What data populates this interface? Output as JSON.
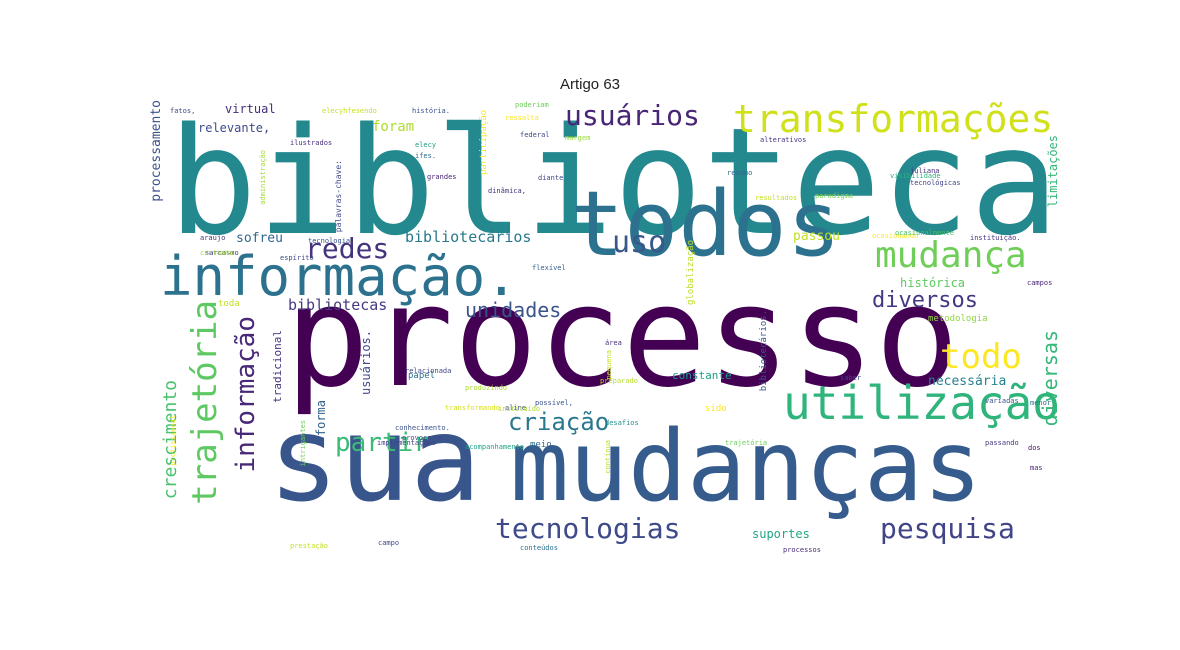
{
  "title": "Artigo 63",
  "words": [
    {
      "text": "biblioteca",
      "color": "#23898e"
    },
    {
      "text": "processo",
      "color": "#440154"
    },
    {
      "text": "sua",
      "color": "#39568c"
    },
    {
      "text": "mudanças",
      "color": "#365c8d"
    },
    {
      "text": "todos",
      "color": "#2c728e"
    },
    {
      "text": "informação.",
      "color": "#2c728e"
    },
    {
      "text": "utilização",
      "color": "#2fb47c"
    },
    {
      "text": "transformações",
      "color": "#d0e11c"
    },
    {
      "text": "mudança",
      "color": "#6ece58"
    },
    {
      "text": "usuários",
      "color": "#482576"
    },
    {
      "text": "uso",
      "color": "#38588c"
    },
    {
      "text": "redes",
      "color": "#46337e"
    },
    {
      "text": "todo",
      "color": "#fde725"
    },
    {
      "text": "tecnologias",
      "color": "#3e4a89"
    },
    {
      "text": "pesquisa",
      "color": "#414487"
    },
    {
      "text": "partir",
      "color": "#3bbb75"
    },
    {
      "text": "criação",
      "color": "#2a788e"
    },
    {
      "text": "diversos",
      "color": "#453882"
    },
    {
      "text": "unidades",
      "color": "#3a538b"
    },
    {
      "text": "trajetória",
      "color": "#5ec962"
    },
    {
      "text": "informação",
      "color": "#482878"
    },
    {
      "text": "crescimento",
      "color": "#4ac16d"
    },
    {
      "text": "diversas",
      "color": "#35b779"
    },
    {
      "text": "bibliotecários",
      "color": "#2a788e"
    },
    {
      "text": "bibliotecas",
      "color": "#443a83"
    },
    {
      "text": "foram",
      "color": "#addc30"
    },
    {
      "text": "sofreu",
      "color": "#31688e"
    },
    {
      "text": "passou",
      "color": "#c0df25"
    },
    {
      "text": "histórica",
      "color": "#5ec962"
    },
    {
      "text": "necessária",
      "color": "#26818e"
    },
    {
      "text": "constante",
      "color": "#1f9e89"
    },
    {
      "text": "suportes",
      "color": "#21a585"
    },
    {
      "text": "processamento",
      "color": "#3b528b"
    },
    {
      "text": "limitações",
      "color": "#35b779"
    },
    {
      "text": "tradicional",
      "color": "#46327e"
    },
    {
      "text": "usuários.",
      "color": "#3e4989"
    },
    {
      "text": "forma",
      "color": "#34618d"
    },
    {
      "text": "virtual",
      "color": "#472d7b"
    },
    {
      "text": "relevante,",
      "color": "#3e4a89"
    },
    {
      "text": "metodologia",
      "color": "#90d743"
    },
    {
      "text": "papel",
      "color": "#2d708e"
    },
    {
      "text": "meio",
      "color": "#31688e"
    },
    {
      "text": "sido",
      "color": "#fde725"
    },
    {
      "text": "toda",
      "color": "#c2df23"
    },
    {
      "text": "participação",
      "color": "#fde725"
    },
    {
      "text": "federal",
      "color": "#3e4989"
    },
    {
      "text": "grandes",
      "color": "#482475"
    },
    {
      "text": "dinâmica,",
      "color": "#46337e"
    },
    {
      "text": "flexível",
      "color": "#34618d"
    },
    {
      "text": "possível,",
      "color": "#3b528b"
    },
    {
      "text": "ifes.",
      "color": "#31688e"
    },
    {
      "text": "elecy",
      "color": "#1f9e89"
    },
    {
      "text": "diante",
      "color": "#3e4989"
    },
    {
      "text": "desafios",
      "color": "#21918c"
    },
    {
      "text": "aline",
      "color": "#404688"
    },
    {
      "text": "poderiam",
      "color": "#6ece58"
    },
    {
      "text": "menor",
      "color": "#2c728e"
    },
    {
      "text": "saber",
      "color": "#414487"
    },
    {
      "text": "área",
      "color": "#46327e"
    },
    {
      "text": "campo",
      "color": "#3e4a89"
    },
    {
      "text": "processos",
      "color": "#472c7a"
    },
    {
      "text": "variadas",
      "color": "#3b528b"
    },
    {
      "text": "passando",
      "color": "#443a83"
    },
    {
      "text": "alterativos",
      "color": "#46337e"
    },
    {
      "text": "ilustrados",
      "color": "#472d7b"
    },
    {
      "text": "ressalta",
      "color": "#fde725"
    },
    {
      "text": "produzindo",
      "color": "#addc30"
    },
    {
      "text": "bibliotecários.",
      "color": "#38588c"
    },
    {
      "text": "conhecimento.",
      "color": "#3b528b"
    },
    {
      "text": "implementações",
      "color": "#414487"
    },
    {
      "text": "preparado",
      "color": "#b5de2b"
    },
    {
      "text": "sarcasmo",
      "color": "#414487"
    },
    {
      "text": "espírito",
      "color": "#3e4a89"
    },
    {
      "text": "globalização",
      "color": "#bddf26"
    },
    {
      "text": "ocasionando",
      "color": "#fde725"
    },
    {
      "text": "instituição.",
      "color": "#46327e"
    },
    {
      "text": "campos",
      "color": "#482576"
    },
    {
      "text": "dos",
      "color": "#471063"
    },
    {
      "text": "mas",
      "color": "#481b6d"
    },
    {
      "text": "fatos,",
      "color": "#3e4989"
    },
    {
      "text": "história.",
      "color": "#3b528b"
    },
    {
      "text": "margem",
      "color": "#9bd93c"
    },
    {
      "text": "resumo",
      "color": "#31688e"
    },
    {
      "text": "paradigma",
      "color": "#7ad151"
    },
    {
      "text": "visibilidade",
      "color": "#2fb47c"
    },
    {
      "text": "resultados",
      "color": "#c8e020"
    },
    {
      "text": "juliana",
      "color": "#46327e"
    },
    {
      "text": "tecnológicas",
      "color": "#414487"
    },
    {
      "text": "elecyhfesendo",
      "color": "#c8e020"
    },
    {
      "text": "administração",
      "color": "#a2da37"
    },
    {
      "text": "pequena",
      "color": "#c8e020"
    },
    {
      "text": "transformando",
      "color": "#d8e219"
    },
    {
      "text": "relacionada",
      "color": "#404688"
    },
    {
      "text": "instituído",
      "color": "#addc30"
    },
    {
      "text": "intrigantes",
      "color": "#6ece58"
    },
    {
      "text": "acompanhamento",
      "color": "#20a386"
    },
    {
      "text": "profissional",
      "color": "#fde725"
    },
    {
      "text": "trajetória",
      "color": "#6ece58"
    },
    {
      "text": "prestação",
      "color": "#c2df23"
    },
    {
      "text": "conteúdos",
      "color": "#2c728e"
    },
    {
      "text": "provocaram",
      "color": "#3e4a89"
    },
    {
      "text": "contínua",
      "color": "#b5de2b"
    },
    {
      "text": "araujo",
      "color": "#46337e"
    },
    {
      "text": "contanto",
      "color": "#a2da37"
    },
    {
      "text": "tecnologia",
      "color": "#3b528b"
    },
    {
      "text": "palavras-chave:",
      "color": "#3e4989"
    },
    {
      "text": "ocasionalmente",
      "color": "#48c16e"
    }
  ]
}
